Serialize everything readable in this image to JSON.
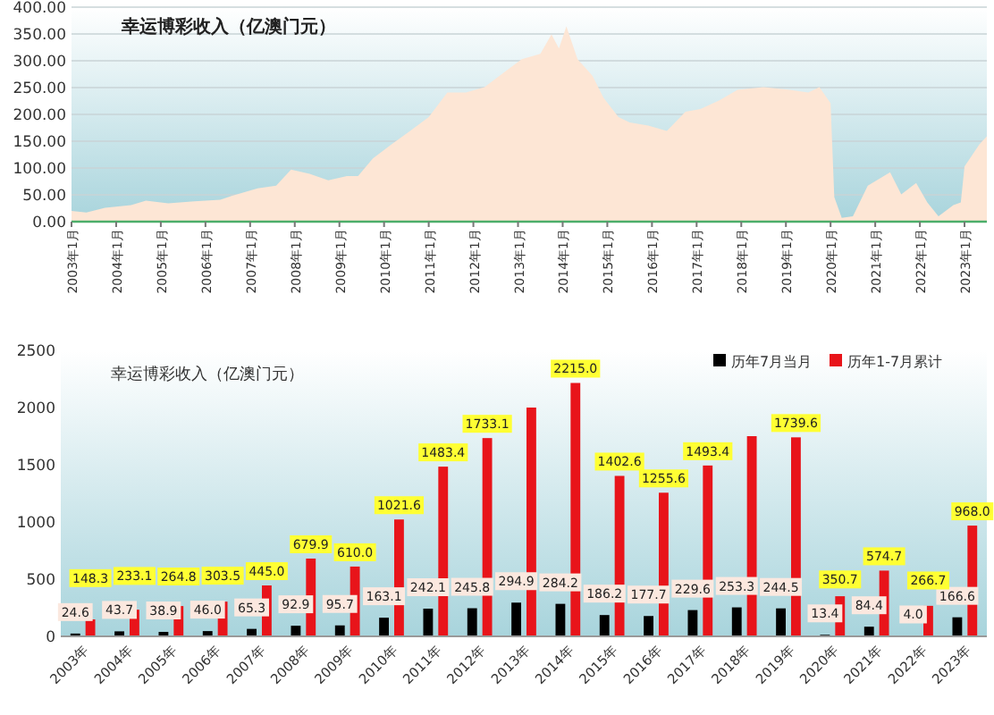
{
  "chart_data": [
    {
      "type": "area",
      "title": "幸运博彩收入（亿澳门元）",
      "color": "#fde6d5",
      "grid": "y",
      "x": [
        "2003-01",
        "2003-05",
        "2003-10",
        "2004-05",
        "2004-09",
        "2005-03",
        "2005-10",
        "2006-05",
        "2006-08",
        "2007-03",
        "2007-08",
        "2007-12",
        "2008-05",
        "2008-10",
        "2009-03",
        "2009-06",
        "2009-10",
        "2010-03",
        "2010-08",
        "2011-01",
        "2011-06",
        "2011-11",
        "2012-04",
        "2012-09",
        "2013-02",
        "2013-07",
        "2013-10",
        "2013-12",
        "2014-02",
        "2014-05",
        "2014-09",
        "2014-12",
        "2015-04",
        "2015-07",
        "2015-12",
        "2016-05",
        "2016-10",
        "2017-02",
        "2017-07",
        "2017-12",
        "2018-07",
        "2019-02",
        "2019-07",
        "2019-10",
        "2020-01",
        "2020-02",
        "2020-04",
        "2020-07",
        "2020-11",
        "2021-05",
        "2021-08",
        "2021-12",
        "2022-03",
        "2022-06",
        "2022-10",
        "2022-12",
        "2023-01",
        "2023-05",
        "2023-07"
      ],
      "values": [
        20,
        17,
        26,
        31,
        39,
        34,
        38,
        41,
        48,
        62,
        67,
        97,
        89,
        77,
        85,
        85,
        118,
        144,
        169,
        195,
        241,
        241,
        251,
        277,
        303,
        313,
        349,
        323,
        364,
        303,
        272,
        231,
        195,
        185,
        179,
        169,
        205,
        210,
        226,
        246,
        251,
        246,
        241,
        251,
        221,
        46,
        7,
        10,
        67,
        92,
        51,
        72,
        36,
        10,
        31,
        36,
        103,
        144,
        159
      ],
      "xlim": [
        "2003-01",
        "2023-07"
      ],
      "xticks": [
        {
          "value": "2003-01",
          "label": "2003年1月"
        },
        {
          "value": "2004-01",
          "label": "2004年1月"
        },
        {
          "value": "2005-01",
          "label": "2005年1月"
        },
        {
          "value": "2006-01",
          "label": "2006年1月"
        },
        {
          "value": "2007-01",
          "label": "2007年1月"
        },
        {
          "value": "2008-01",
          "label": "2008年1月"
        },
        {
          "value": "2009-01",
          "label": "2009年1月"
        },
        {
          "value": "2010-01",
          "label": "2010年1月"
        },
        {
          "value": "2011-01",
          "label": "2011年1月"
        },
        {
          "value": "2012-01",
          "label": "2012年1月"
        },
        {
          "value": "2013-01",
          "label": "2013年1月"
        },
        {
          "value": "2014-01",
          "label": "2014年1月"
        },
        {
          "value": "2015-01",
          "label": "2015年1月"
        },
        {
          "value": "2016-01",
          "label": "2016年1月"
        },
        {
          "value": "2017-01",
          "label": "2017年1月"
        },
        {
          "value": "2018-01",
          "label": "2018年1月"
        },
        {
          "value": "2019-01",
          "label": "2019年1月"
        },
        {
          "value": "2020-01",
          "label": "2020年1月"
        },
        {
          "value": "2021-01",
          "label": "2021年1月"
        },
        {
          "value": "2022-01",
          "label": "2022年1月"
        },
        {
          "value": "2023-01",
          "label": "2023年1月"
        }
      ],
      "ylim": [
        0,
        400
      ],
      "yticks": [
        {
          "value": 0,
          "label": "0.00"
        },
        {
          "value": 50,
          "label": "50.00"
        },
        {
          "value": 100,
          "label": "100.00"
        },
        {
          "value": 150,
          "label": "150.00"
        },
        {
          "value": 200,
          "label": "200.00"
        },
        {
          "value": 250,
          "label": "250.00"
        },
        {
          "value": 300,
          "label": "300.00"
        },
        {
          "value": 350,
          "label": "350.00"
        },
        {
          "value": 400,
          "label": "400.00"
        }
      ]
    },
    {
      "type": "bar",
      "title": "幸运博彩收入（亿澳门元）",
      "legend": "top right",
      "categories": [
        "2003年",
        "2004年",
        "2005年",
        "2006年",
        "2007年",
        "2008年",
        "2009年",
        "2010年",
        "2011年",
        "2012年",
        "2013年",
        "2014年",
        "2015年",
        "2016年",
        "2017年",
        "2018年",
        "2019年",
        "2020年",
        "2021年",
        "2022年",
        "2023年"
      ],
      "ylim": [
        0,
        2500
      ],
      "yticks": [
        0,
        500,
        1000,
        1500,
        2000,
        2500
      ],
      "series": [
        {
          "name": "历年7月当月",
          "color": "#000000",
          "values": [
            24.6,
            43.7,
            38.9,
            46.0,
            65.3,
            92.9,
            95.7,
            163.1,
            242.1,
            245.8,
            294.9,
            284.2,
            186.2,
            177.7,
            229.6,
            253.3,
            244.5,
            13.4,
            84.4,
            4.0,
            166.6
          ],
          "value_labels": [
            "24.6",
            "43.7",
            "38.9",
            "46.0",
            "65.3",
            "92.9",
            "95.7",
            "163.1",
            "242.1",
            "245.8",
            "294.9",
            "284.2",
            "186.2",
            "177.7",
            "229.6",
            "253.3",
            "244.5",
            "13.4",
            "84.4",
            "4.0",
            "166.6"
          ]
        },
        {
          "name": "历年1-7月累计",
          "color": "#e8141a",
          "values": [
            148.3,
            233.1,
            264.8,
            303.5,
            445.0,
            679.9,
            610.0,
            1021.6,
            1483.4,
            1733.1,
            2000,
            2215.0,
            1402.6,
            1255.6,
            1493.4,
            1750,
            1739.6,
            350.7,
            574.7,
            266.7,
            968.0
          ],
          "value_labels": [
            "148.3",
            "233.1",
            "264.8",
            "303.5",
            "445.0",
            "679.9",
            "610.0",
            "1021.6",
            "1483.4",
            "1733.1",
            null,
            "2215.0",
            "1402.6",
            "1255.6",
            "1493.4",
            null,
            "1739.6",
            "350.7",
            "574.7",
            "266.7",
            "968.0"
          ]
        }
      ]
    }
  ]
}
